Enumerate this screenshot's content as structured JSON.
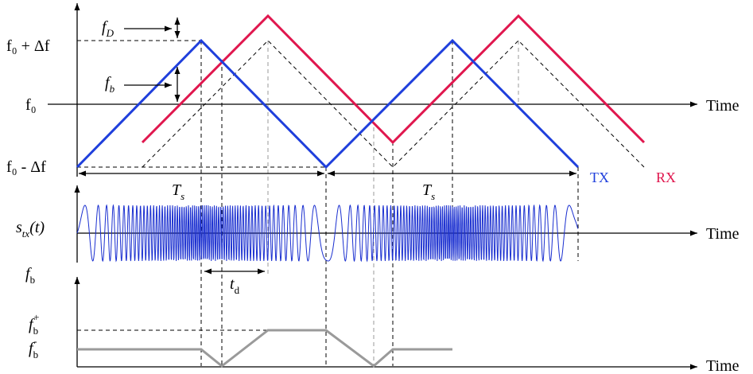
{
  "labels": {
    "time_top": "Time",
    "time_mid": "Time",
    "time_bot": "Time",
    "f0_plus_df": "f₀ + Δf",
    "f0": "f₀",
    "f0_minus_df": "f₀ - Δf",
    "fD_main": "f",
    "fD_sub": "D",
    "fb_main": "f",
    "fb_sub": "b",
    "ts1_main": "T",
    "ts1_sub": "s",
    "ts2_main": "T",
    "ts2_sub": "s",
    "td_main": "t",
    "td_sub": "d",
    "stx_main": "s",
    "stx_sub": "tx",
    "stx_arg": "(t)",
    "fb_axis_main": "f",
    "fb_axis_sub": "b",
    "fbplus_main": "f",
    "fbplus_sub": "b",
    "fbplus_sup": "+",
    "fbminus_main": "f",
    "fbminus_sub": "b",
    "fbminus_sup": "-",
    "tx": "TX",
    "rx": "RX"
  },
  "colors": {
    "tx": "#1f3fdc",
    "rx": "#e0174e",
    "beat": "#9a9a9a",
    "signal": "#1a2fd0",
    "axis": "#000000"
  }
}
